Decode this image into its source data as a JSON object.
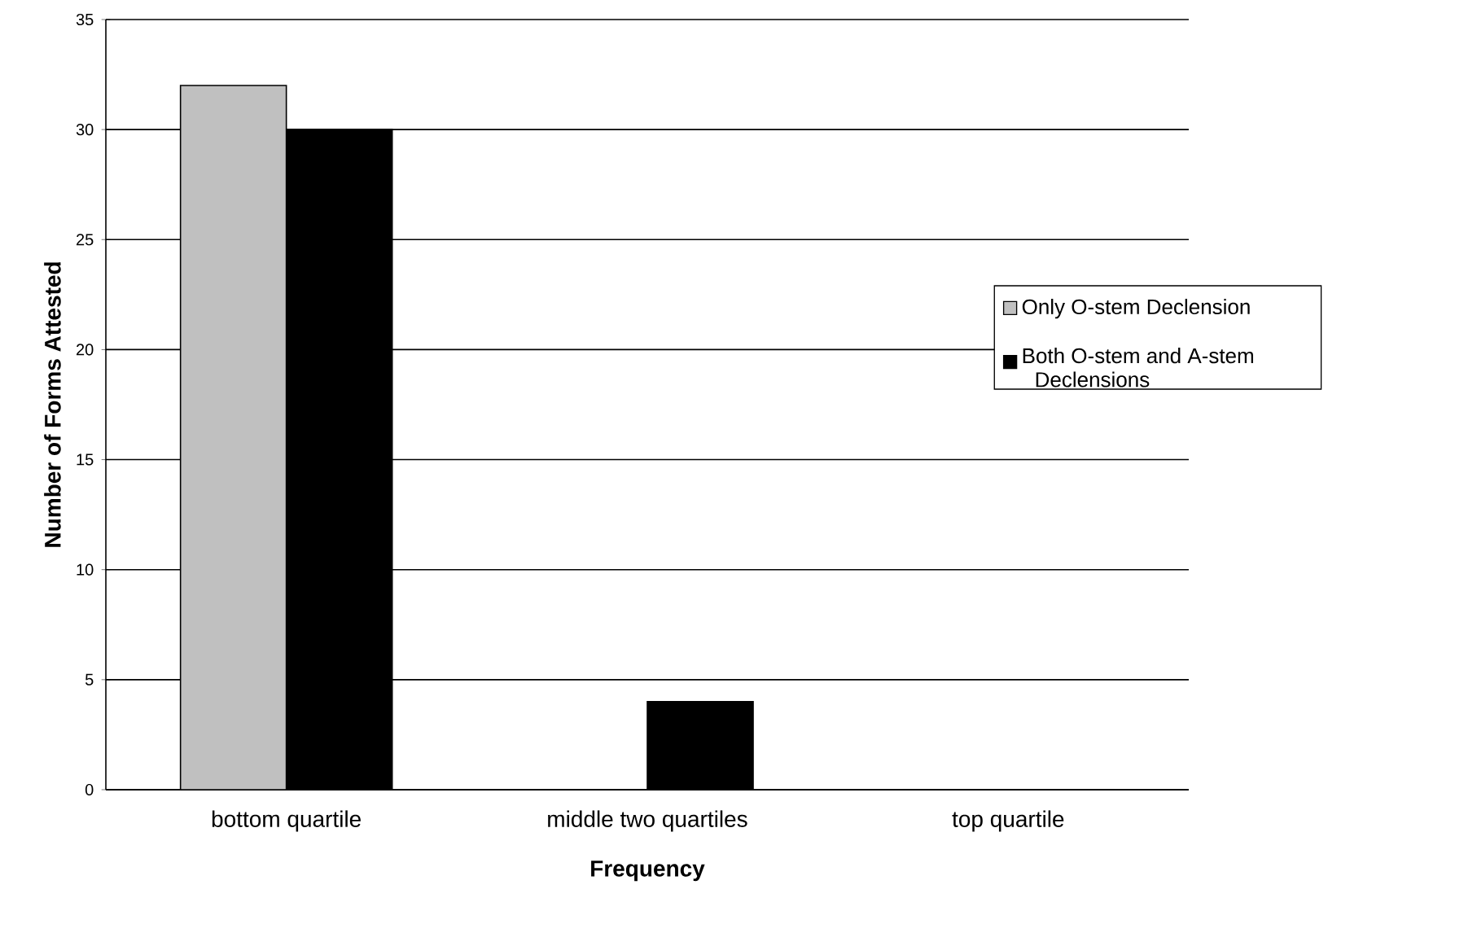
{
  "chart_data": {
    "type": "bar",
    "xlabel": "Frequency",
    "ylabel": "Number of Forms Attested",
    "categories": [
      "bottom quartile",
      "middle two quartiles",
      "top quartile"
    ],
    "series": [
      {
        "name": "Only O-stem Declension",
        "color": "#c0c0c0",
        "values": [
          32,
          0,
          0
        ]
      },
      {
        "name": "Both O-stem and A-stem Declensions",
        "color": "#000000",
        "values": [
          30,
          4,
          0
        ]
      }
    ],
    "ylim": [
      0,
      35
    ],
    "yticks": [
      0,
      5,
      10,
      15,
      20,
      25,
      30,
      35
    ],
    "grid": "y",
    "legend": "right"
  }
}
